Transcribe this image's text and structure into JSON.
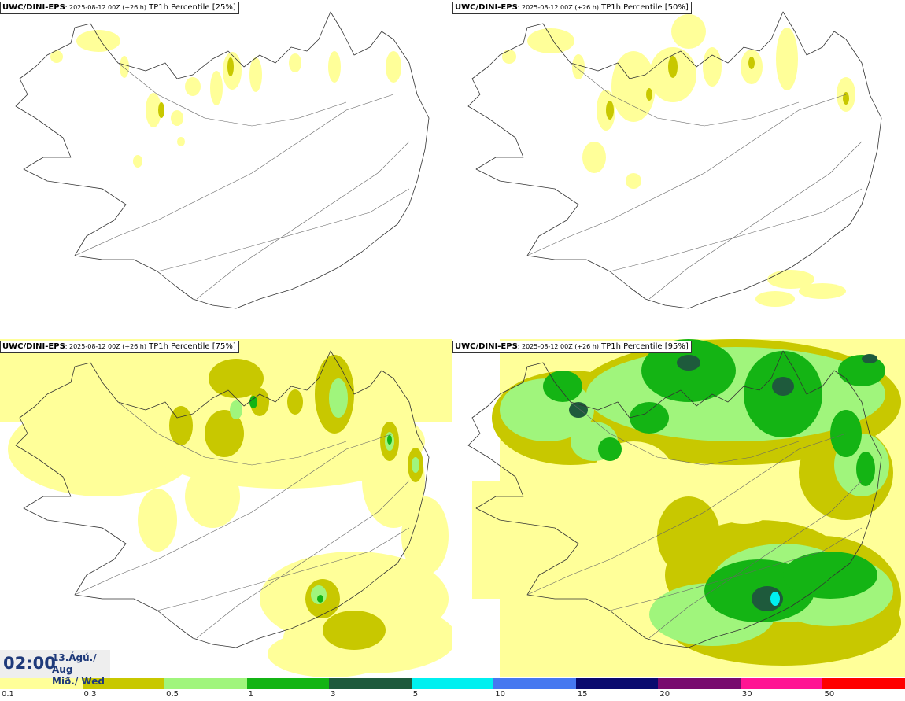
{
  "panels": [
    {
      "model": "UWC/DINI-EPS",
      "meta": ": 2025-08-12 00Z (+26 h)",
      "field": " TP1h Percentile [25%]"
    },
    {
      "model": "UWC/DINI-EPS",
      "meta": ": 2025-08-12 00Z (+26 h)",
      "field": " TP1h Percentile [50%]"
    },
    {
      "model": "UWC/DINI-EPS",
      "meta": ": 2025-08-12 00Z (+26 h)",
      "field": " TP1h Percentile [75%]"
    },
    {
      "model": "UWC/DINI-EPS",
      "meta": ": 2025-08-12 00Z (+26 h)",
      "field": " TP1h Percentile [95%]"
    }
  ],
  "valid_time": {
    "time": "02:00",
    "date_line1": "13.Ágú./ Aug",
    "date_line2": "Mið./ Wed"
  },
  "legend": {
    "colors": [
      "#ffff99",
      "#c8c800",
      "#a0f57c",
      "#14b414",
      "#1e5a3c",
      "#00f0f0",
      "#4678f0",
      "#0a0a6e",
      "#780a6e",
      "#ff1493",
      "#ff0000"
    ],
    "labels": [
      "0.1",
      "0.3",
      "0.5",
      "1",
      "3",
      "5",
      "10",
      "15",
      "20",
      "30",
      "50"
    ]
  }
}
